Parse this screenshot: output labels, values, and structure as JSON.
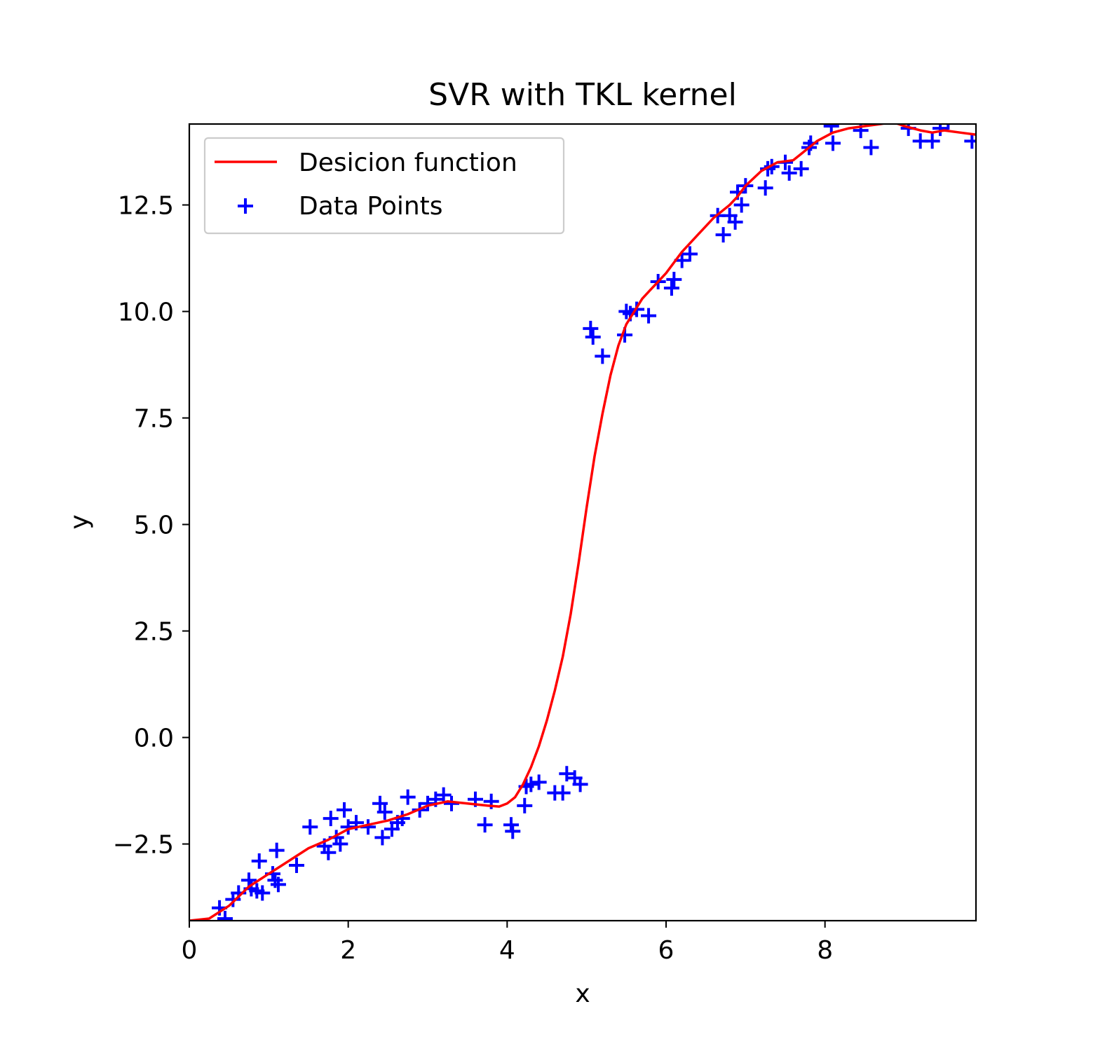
{
  "chart_data": {
    "type": "scatter",
    "title": "SVR with TKL kernel",
    "xlabel": "x",
    "ylabel": "y",
    "xlim": [
      0,
      9.9
    ],
    "ylim": [
      -4.3,
      14.4
    ],
    "x_ticks": [
      0,
      2,
      4,
      6,
      8
    ],
    "x_tick_labels": [
      "0",
      "2",
      "4",
      "6",
      "8"
    ],
    "y_ticks": [
      -2.5,
      0.0,
      2.5,
      5.0,
      7.5,
      10.0,
      12.5
    ],
    "y_tick_labels": [
      "−2.5",
      "0.0",
      "2.5",
      "5.0",
      "7.5",
      "10.0",
      "12.5"
    ],
    "grid": false,
    "legend_position": "top-left",
    "colors": {
      "decision_function": "#ff0000",
      "data_points": "#0000ff"
    },
    "series": [
      {
        "name": "Desicion function",
        "type": "line",
        "x": [
          0.0,
          0.25,
          0.5,
          0.75,
          1.0,
          1.25,
          1.5,
          1.75,
          2.0,
          2.25,
          2.5,
          2.75,
          3.0,
          3.25,
          3.5,
          3.75,
          3.9,
          4.0,
          4.1,
          4.2,
          4.3,
          4.4,
          4.5,
          4.6,
          4.7,
          4.8,
          4.9,
          5.0,
          5.1,
          5.2,
          5.3,
          5.4,
          5.5,
          5.6,
          5.7,
          5.8,
          5.9,
          6.0,
          6.2,
          6.4,
          6.6,
          6.8,
          6.9,
          7.0,
          7.2,
          7.4,
          7.6,
          7.7,
          7.9,
          8.1,
          8.3,
          8.5,
          8.7,
          8.85,
          9.0,
          9.2,
          9.35,
          9.5,
          9.7,
          9.9
        ],
        "y": [
          -4.3,
          -4.25,
          -3.95,
          -3.5,
          -3.2,
          -2.9,
          -2.6,
          -2.4,
          -2.15,
          -2.05,
          -1.95,
          -1.8,
          -1.6,
          -1.5,
          -1.55,
          -1.6,
          -1.62,
          -1.55,
          -1.4,
          -1.1,
          -0.7,
          -0.2,
          0.4,
          1.1,
          1.9,
          2.9,
          4.1,
          5.4,
          6.6,
          7.6,
          8.5,
          9.2,
          9.7,
          10.0,
          10.3,
          10.5,
          10.7,
          10.9,
          11.4,
          11.8,
          12.2,
          12.5,
          12.7,
          12.95,
          13.3,
          13.5,
          13.55,
          13.7,
          14.0,
          14.2,
          14.3,
          14.35,
          14.4,
          14.45,
          14.35,
          14.25,
          14.2,
          14.25,
          14.2,
          14.15
        ]
      },
      {
        "name": "Data Points",
        "type": "scatter",
        "x": [
          0.38,
          0.45,
          0.55,
          0.62,
          0.75,
          0.78,
          0.85,
          0.88,
          0.92,
          1.05,
          1.08,
          1.1,
          1.12,
          1.35,
          1.52,
          1.7,
          1.75,
          1.78,
          1.85,
          1.9,
          1.95,
          2.0,
          2.1,
          2.25,
          2.4,
          2.43,
          2.46,
          2.55,
          2.62,
          2.68,
          2.75,
          2.9,
          3.0,
          3.1,
          3.2,
          3.3,
          3.6,
          3.72,
          3.8,
          4.05,
          4.07,
          4.22,
          4.24,
          4.3,
          4.4,
          4.6,
          4.7,
          4.75,
          4.85,
          4.92,
          5.05,
          5.08,
          5.2,
          5.48,
          5.5,
          5.55,
          5.63,
          5.78,
          5.9,
          6.07,
          6.1,
          6.2,
          6.3,
          6.65,
          6.72,
          6.8,
          6.87,
          6.9,
          6.95,
          7.0,
          7.25,
          7.28,
          7.33,
          7.5,
          7.55,
          7.7,
          7.8,
          7.82,
          8.08,
          8.1,
          8.45,
          8.58,
          9.05,
          9.2,
          9.35,
          9.45,
          9.55,
          9.85
        ],
        "y": [
          -4.0,
          -4.25,
          -3.8,
          -3.65,
          -3.35,
          -3.55,
          -3.6,
          -2.9,
          -3.65,
          -3.2,
          -3.35,
          -2.65,
          -3.45,
          -3.0,
          -2.1,
          -2.55,
          -2.7,
          -1.9,
          -2.35,
          -2.5,
          -1.7,
          -2.1,
          -2.0,
          -2.1,
          -1.55,
          -2.35,
          -1.75,
          -2.15,
          -2.0,
          -1.9,
          -1.4,
          -1.7,
          -1.55,
          -1.45,
          -1.35,
          -1.55,
          -1.45,
          -2.05,
          -1.5,
          -2.05,
          -2.2,
          -1.6,
          -1.15,
          -1.1,
          -1.05,
          -1.3,
          -1.3,
          -0.85,
          -0.95,
          -1.1,
          9.6,
          9.4,
          8.95,
          9.45,
          10.0,
          9.95,
          10.05,
          9.9,
          10.7,
          10.55,
          10.75,
          11.2,
          11.35,
          12.25,
          11.8,
          12.25,
          12.1,
          12.8,
          12.5,
          12.95,
          12.9,
          13.35,
          13.4,
          13.5,
          13.25,
          13.35,
          13.85,
          13.95,
          14.35,
          13.95,
          14.25,
          13.85,
          14.3,
          14.0,
          14.0,
          14.3,
          14.45,
          14.0
        ]
      }
    ]
  }
}
